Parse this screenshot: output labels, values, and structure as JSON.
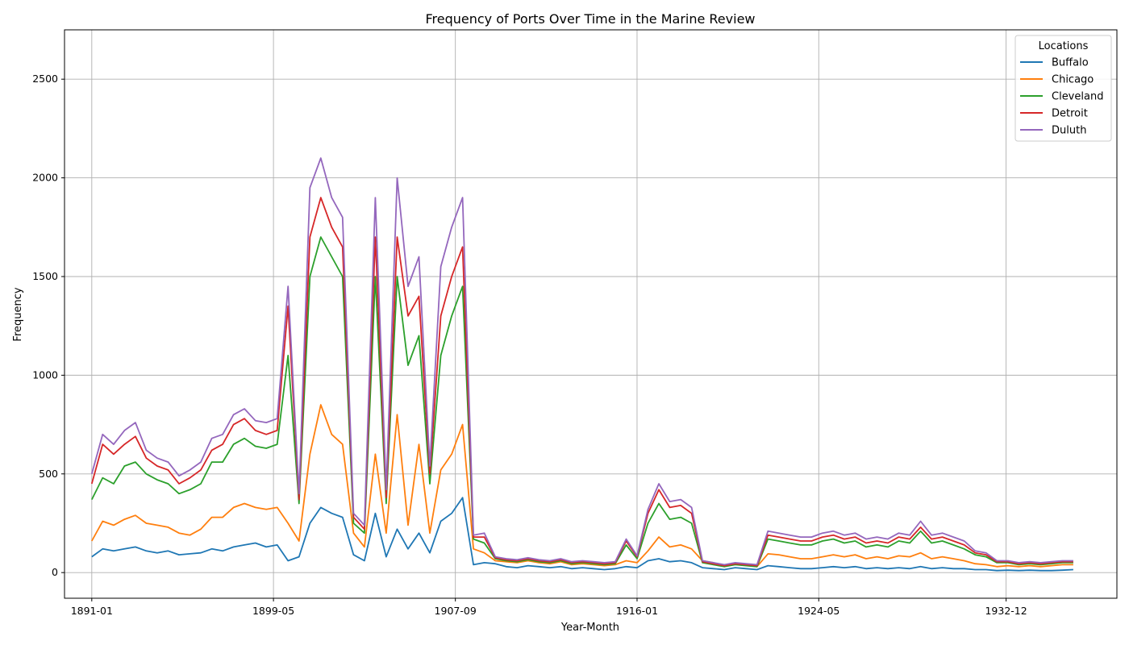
{
  "chart_data": {
    "type": "line",
    "title": "Frequency of Ports Over Time in the Marine Review",
    "xlabel": "Year-Month",
    "ylabel": "Frequency",
    "xlim": [
      1889.75,
      1938.0
    ],
    "ylim": [
      -130,
      2750
    ],
    "x_ticks": [
      {
        "label": "1891-01",
        "value": 1891.0
      },
      {
        "label": "1899-05",
        "value": 1899.33
      },
      {
        "label": "1907-09",
        "value": 1907.67
      },
      {
        "label": "1916-01",
        "value": 1916.0
      },
      {
        "label": "1924-05",
        "value": 1924.33
      },
      {
        "label": "1932-12",
        "value": 1932.92
      }
    ],
    "y_ticks": [
      0,
      500,
      1000,
      1500,
      2000,
      2500
    ],
    "grid": true,
    "legend": {
      "title": "Locations",
      "position": "top-right"
    },
    "x": [
      1891.0,
      1891.5,
      1892.0,
      1892.5,
      1893.0,
      1893.5,
      1894.0,
      1894.5,
      1895.0,
      1895.5,
      1896.0,
      1896.5,
      1897.0,
      1897.5,
      1898.0,
      1898.5,
      1899.0,
      1899.5,
      1900.0,
      1900.5,
      1901.0,
      1901.5,
      1902.0,
      1902.5,
      1903.0,
      1903.5,
      1904.0,
      1904.5,
      1905.0,
      1905.5,
      1906.0,
      1906.5,
      1907.0,
      1907.5,
      1908.0,
      1908.5,
      1909.0,
      1909.5,
      1910.0,
      1910.5,
      1911.0,
      1911.5,
      1912.0,
      1912.5,
      1913.0,
      1913.5,
      1914.0,
      1914.5,
      1915.0,
      1915.5,
      1916.0,
      1916.5,
      1917.0,
      1917.5,
      1918.0,
      1918.5,
      1919.0,
      1919.5,
      1920.0,
      1920.5,
      1921.0,
      1921.5,
      1922.0,
      1922.5,
      1923.0,
      1923.5,
      1924.0,
      1924.5,
      1925.0,
      1925.5,
      1926.0,
      1926.5,
      1927.0,
      1927.5,
      1928.0,
      1928.5,
      1929.0,
      1929.5,
      1930.0,
      1930.5,
      1931.0,
      1931.5,
      1932.0,
      1932.5,
      1933.0,
      1933.5,
      1934.0,
      1934.5,
      1935.0,
      1935.5,
      1936.0
    ],
    "series": [
      {
        "name": "Buffalo",
        "color": "#1f77b4",
        "values": [
          80,
          120,
          110,
          120,
          130,
          110,
          100,
          110,
          90,
          95,
          100,
          120,
          110,
          130,
          140,
          150,
          130,
          140,
          60,
          80,
          250,
          330,
          300,
          280,
          90,
          60,
          300,
          80,
          220,
          120,
          200,
          100,
          260,
          300,
          380,
          40,
          50,
          45,
          30,
          25,
          35,
          30,
          25,
          30,
          20,
          25,
          20,
          15,
          20,
          30,
          25,
          60,
          70,
          55,
          60,
          50,
          25,
          20,
          15,
          25,
          20,
          15,
          35,
          30,
          25,
          20,
          20,
          25,
          30,
          25,
          30,
          20,
          25,
          20,
          25,
          20,
          30,
          20,
          25,
          20,
          20,
          15,
          15,
          10,
          12,
          10,
          12,
          10,
          10,
          12,
          15
        ]
      },
      {
        "name": "Chicago",
        "color": "#ff7f0e",
        "values": [
          160,
          260,
          240,
          270,
          290,
          250,
          240,
          230,
          200,
          190,
          220,
          280,
          280,
          330,
          350,
          330,
          320,
          330,
          250,
          160,
          600,
          850,
          700,
          650,
          200,
          130,
          600,
          200,
          800,
          240,
          650,
          200,
          520,
          600,
          750,
          120,
          100,
          60,
          55,
          50,
          60,
          50,
          45,
          55,
          40,
          45,
          40,
          35,
          40,
          60,
          50,
          110,
          180,
          130,
          140,
          120,
          60,
          50,
          30,
          45,
          40,
          30,
          95,
          90,
          80,
          70,
          70,
          80,
          90,
          80,
          90,
          70,
          80,
          70,
          85,
          80,
          100,
          70,
          80,
          70,
          60,
          45,
          40,
          30,
          35,
          30,
          35,
          30,
          35,
          40,
          40
        ]
      },
      {
        "name": "Cleveland",
        "color": "#2ca02c",
        "values": [
          370,
          480,
          450,
          540,
          560,
          500,
          470,
          450,
          400,
          420,
          450,
          560,
          560,
          650,
          680,
          640,
          630,
          650,
          1100,
          350,
          1500,
          1700,
          1600,
          1500,
          250,
          200,
          1500,
          350,
          1500,
          1050,
          1200,
          450,
          1100,
          1300,
          1450,
          170,
          150,
          70,
          60,
          55,
          65,
          55,
          50,
          60,
          45,
          50,
          45,
          40,
          45,
          140,
          70,
          250,
          350,
          270,
          280,
          250,
          50,
          40,
          30,
          40,
          35,
          30,
          170,
          160,
          150,
          140,
          140,
          160,
          170,
          150,
          160,
          130,
          140,
          130,
          160,
          150,
          210,
          150,
          160,
          140,
          120,
          90,
          80,
          50,
          50,
          40,
          45,
          40,
          45,
          50,
          50
        ]
      },
      {
        "name": "Detroit",
        "color": "#d62728",
        "values": [
          450,
          650,
          600,
          650,
          690,
          580,
          540,
          520,
          450,
          480,
          520,
          620,
          650,
          750,
          780,
          720,
          700,
          720,
          1350,
          370,
          1700,
          1900,
          1750,
          1650,
          280,
          220,
          1700,
          380,
          1700,
          1300,
          1400,
          500,
          1300,
          1500,
          1650,
          180,
          180,
          75,
          65,
          60,
          70,
          60,
          55,
          65,
          50,
          55,
          50,
          45,
          50,
          160,
          80,
          300,
          420,
          330,
          340,
          300,
          55,
          45,
          35,
          45,
          40,
          35,
          190,
          180,
          170,
          160,
          160,
          180,
          190,
          170,
          180,
          150,
          160,
          150,
          180,
          170,
          230,
          170,
          180,
          160,
          140,
          100,
          90,
          55,
          55,
          45,
          50,
          45,
          50,
          55,
          55
        ]
      },
      {
        "name": "Duluth",
        "color": "#9467bd",
        "values": [
          500,
          700,
          650,
          720,
          760,
          620,
          580,
          560,
          490,
          520,
          560,
          680,
          700,
          800,
          830,
          770,
          760,
          780,
          1450,
          400,
          1950,
          2100,
          1900,
          1800,
          300,
          240,
          1900,
          420,
          2000,
          1450,
          1600,
          540,
          1550,
          1750,
          1900,
          190,
          200,
          80,
          70,
          65,
          75,
          65,
          60,
          70,
          55,
          60,
          55,
          50,
          55,
          170,
          85,
          320,
          450,
          360,
          370,
          330,
          60,
          50,
          40,
          50,
          45,
          40,
          210,
          200,
          190,
          180,
          180,
          200,
          210,
          190,
          200,
          170,
          180,
          170,
          200,
          190,
          260,
          190,
          200,
          180,
          160,
          110,
          100,
          60,
          60,
          50,
          55,
          50,
          55,
          60,
          60
        ]
      }
    ]
  }
}
